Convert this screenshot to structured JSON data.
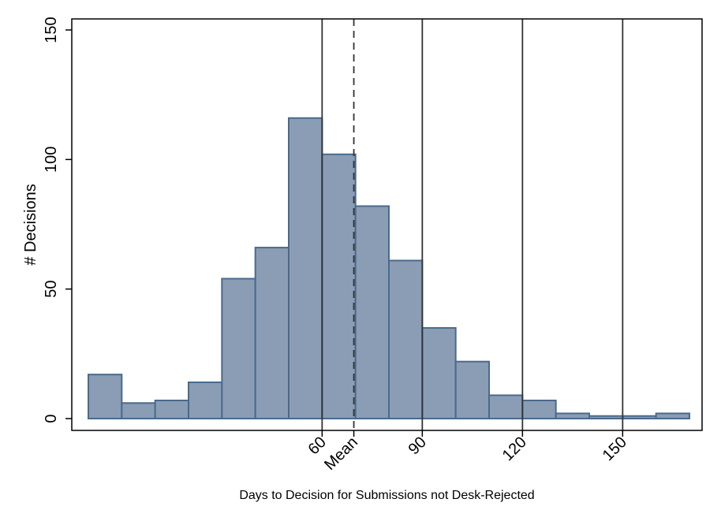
{
  "chart_data": {
    "type": "bar",
    "subtype": "histogram",
    "xlabel": "Days to Decision for Submissions not Desk-Rejected",
    "ylabel": "# Decisions",
    "xlim": [
      -10,
      170
    ],
    "ylim": [
      0,
      150
    ],
    "bin_width": 10,
    "bins": [
      {
        "start": -10,
        "end": 0,
        "count": 17
      },
      {
        "start": 0,
        "end": 10,
        "count": 6
      },
      {
        "start": 10,
        "end": 20,
        "count": 7
      },
      {
        "start": 20,
        "end": 30,
        "count": 14
      },
      {
        "start": 30,
        "end": 40,
        "count": 54
      },
      {
        "start": 40,
        "end": 50,
        "count": 66
      },
      {
        "start": 50,
        "end": 60,
        "count": 116
      },
      {
        "start": 60,
        "end": 70,
        "count": 102
      },
      {
        "start": 70,
        "end": 80,
        "count": 82
      },
      {
        "start": 80,
        "end": 90,
        "count": 61
      },
      {
        "start": 90,
        "end": 100,
        "count": 35
      },
      {
        "start": 100,
        "end": 110,
        "count": 22
      },
      {
        "start": 110,
        "end": 120,
        "count": 9
      },
      {
        "start": 120,
        "end": 130,
        "count": 7
      },
      {
        "start": 130,
        "end": 140,
        "count": 2
      },
      {
        "start": 140,
        "end": 150,
        "count": 1
      },
      {
        "start": 150,
        "end": 160,
        "count": 1
      },
      {
        "start": 160,
        "end": 170,
        "count": 2
      }
    ],
    "y_ticks": [
      0,
      50,
      100,
      150
    ],
    "x_ticks": [
      {
        "value": 60,
        "label": "60"
      },
      {
        "value": 69.5,
        "label": "Mean"
      },
      {
        "value": 90,
        "label": "90"
      },
      {
        "value": 120,
        "label": "120"
      },
      {
        "value": 150,
        "label": "150"
      }
    ],
    "reference_lines": [
      {
        "value": 60,
        "style": "solid"
      },
      {
        "value": 69.5,
        "style": "dashed"
      },
      {
        "value": 90,
        "style": "solid"
      },
      {
        "value": 120,
        "style": "solid"
      },
      {
        "value": 150,
        "style": "solid"
      }
    ],
    "colors": {
      "bar_fill": "#8a9db5",
      "bar_stroke": "#4a6a8c",
      "axis": "#000000",
      "reference_line": "#333333"
    },
    "grid": false,
    "legend": "none"
  }
}
